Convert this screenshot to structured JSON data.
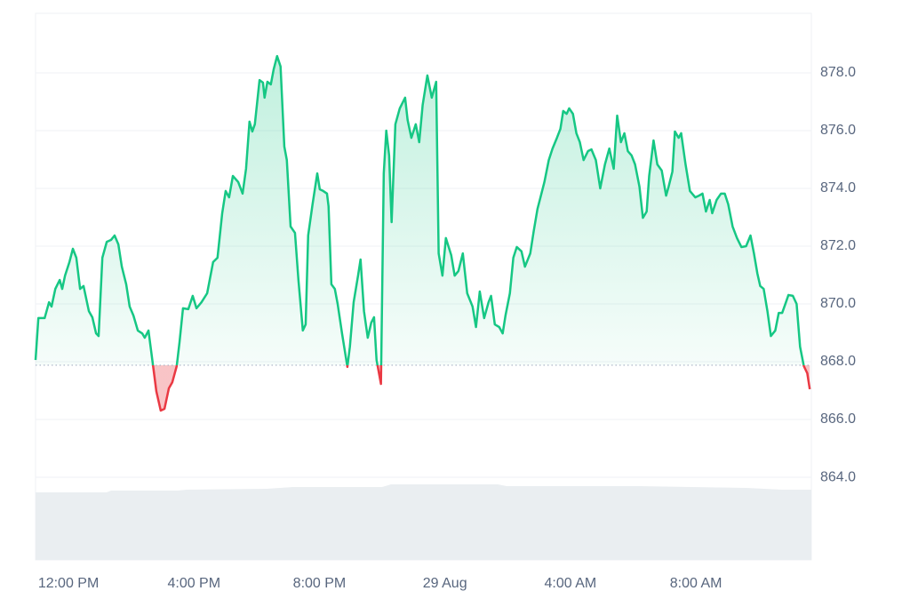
{
  "chart_data": {
    "type": "area",
    "xlim": [
      -1.05,
      23.68
    ],
    "xticks": [
      {
        "value": 0,
        "label": "12:00 PM"
      },
      {
        "value": 4,
        "label": "4:00 PM"
      },
      {
        "value": 8,
        "label": "8:00 PM"
      },
      {
        "value": 12,
        "label": "29 Aug"
      },
      {
        "value": 16,
        "label": "4:00 AM"
      },
      {
        "value": 20,
        "label": "8:00 AM"
      }
    ],
    "ylim": [
      861.14,
      880.06
    ],
    "yticks": [
      {
        "value": 864,
        "label": "864.0"
      },
      {
        "value": 866,
        "label": "866.0"
      },
      {
        "value": 868,
        "label": "868.0"
      },
      {
        "value": 870,
        "label": "870.0"
      },
      {
        "value": 872,
        "label": "872.0"
      },
      {
        "value": 874,
        "label": "874.0"
      },
      {
        "value": 876,
        "label": "876.0"
      },
      {
        "value": 878,
        "label": "878.0"
      }
    ],
    "grid": true,
    "baseline": 867.88,
    "up_color": "#16c784",
    "down_color": "#ea3943",
    "x": [
      -1.05,
      -0.96,
      -0.76,
      -0.62,
      -0.54,
      -0.42,
      -0.28,
      -0.2,
      -0.11,
      0.03,
      0.14,
      0.25,
      0.37,
      0.48,
      0.65,
      0.76,
      0.88,
      0.96,
      1.08,
      1.22,
      1.36,
      1.47,
      1.59,
      1.7,
      1.84,
      1.95,
      2.07,
      2.21,
      2.35,
      2.43,
      2.55,
      2.69,
      2.8,
      2.94,
      3.06,
      3.2,
      3.31,
      3.45,
      3.54,
      3.65,
      3.82,
      3.96,
      4.08,
      4.24,
      4.42,
      4.61,
      4.75,
      4.9,
      5.01,
      5.12,
      5.24,
      5.41,
      5.55,
      5.66,
      5.77,
      5.86,
      5.94,
      6.09,
      6.2,
      6.25,
      6.34,
      6.45,
      6.54,
      6.65,
      6.76,
      6.88,
      6.96,
      7.08,
      7.22,
      7.33,
      7.47,
      7.56,
      7.64,
      7.78,
      7.93,
      8.01,
      8.12,
      8.24,
      8.29,
      8.38,
      8.49,
      8.58,
      8.72,
      8.89,
      8.97,
      9.09,
      9.23,
      9.31,
      9.42,
      9.54,
      9.65,
      9.74,
      9.82,
      9.96,
      10.05,
      10.13,
      10.22,
      10.3,
      10.42,
      10.56,
      10.73,
      10.81,
      10.93,
      11.07,
      11.18,
      11.29,
      11.44,
      11.58,
      11.72,
      11.8,
      11.92,
      12.03,
      12.2,
      12.31,
      12.43,
      12.57,
      12.71,
      12.88,
      12.99,
      13.11,
      13.25,
      13.39,
      13.47,
      13.59,
      13.73,
      13.84,
      13.93,
      14.07,
      14.18,
      14.29,
      14.44,
      14.55,
      14.72,
      14.83,
      14.95,
      15.06,
      15.17,
      15.31,
      15.43,
      15.57,
      15.68,
      15.77,
      15.88,
      15.96,
      16.08,
      16.19,
      16.3,
      16.42,
      16.56,
      16.67,
      16.81,
      16.95,
      17.1,
      17.24,
      17.38,
      17.49,
      17.61,
      17.72,
      17.83,
      17.95,
      18.06,
      18.2,
      18.31,
      18.43,
      18.51,
      18.65,
      18.77,
      18.91,
      19.05,
      19.13,
      19.25,
      19.33,
      19.45,
      19.53,
      19.67,
      19.81,
      19.98,
      20.1,
      20.21,
      20.32,
      20.44,
      20.52,
      20.66,
      20.8,
      20.92,
      21.03,
      21.17,
      21.31,
      21.45,
      21.6,
      21.74,
      21.85,
      21.96,
      22.05,
      22.16,
      22.28,
      22.39,
      22.53,
      22.64,
      22.75,
      22.87,
      22.95,
      23.09,
      23.21,
      23.32,
      23.44,
      23.55,
      23.63
    ],
    "values": [
      868.06,
      869.51,
      869.51,
      870.06,
      869.91,
      870.52,
      870.83,
      870.52,
      870.98,
      871.45,
      871.91,
      871.6,
      870.52,
      870.62,
      869.75,
      869.54,
      868.98,
      868.89,
      871.6,
      872.15,
      872.22,
      872.37,
      872.06,
      871.29,
      870.68,
      869.91,
      869.6,
      869.08,
      868.98,
      868.83,
      869.08,
      867.91,
      866.98,
      866.31,
      866.37,
      867.08,
      867.29,
      867.85,
      868.68,
      869.85,
      869.82,
      870.28,
      869.85,
      870.06,
      870.37,
      871.45,
      871.6,
      873.14,
      873.91,
      873.69,
      874.43,
      874.22,
      873.82,
      874.68,
      876.31,
      875.97,
      876.22,
      877.75,
      877.66,
      877.14,
      877.69,
      877.6,
      878.12,
      878.58,
      878.22,
      875.45,
      874.98,
      872.68,
      872.46,
      870.83,
      869.08,
      869.29,
      872.37,
      873.45,
      874.52,
      873.97,
      873.91,
      873.82,
      873.38,
      870.68,
      870.52,
      870.0,
      868.98,
      867.82,
      868.52,
      870.06,
      870.98,
      871.54,
      869.75,
      868.83,
      869.35,
      869.54,
      868.06,
      867.23,
      874.52,
      876.0,
      875.14,
      872.83,
      876.22,
      876.77,
      877.14,
      876.37,
      875.75,
      876.22,
      875.6,
      876.89,
      877.91,
      877.14,
      877.69,
      871.75,
      870.98,
      872.28,
      871.69,
      870.98,
      871.14,
      871.75,
      870.37,
      869.91,
      869.2,
      870.43,
      869.51,
      870.06,
      870.28,
      869.29,
      869.2,
      868.98,
      869.6,
      870.37,
      871.6,
      871.97,
      871.82,
      871.29,
      871.75,
      872.52,
      873.29,
      873.75,
      874.22,
      874.98,
      875.38,
      875.75,
      876.06,
      876.68,
      876.58,
      876.77,
      876.58,
      875.91,
      875.6,
      874.98,
      875.29,
      875.35,
      874.98,
      874.0,
      874.83,
      875.38,
      874.68,
      876.52,
      875.6,
      875.91,
      875.29,
      875.14,
      874.83,
      874.06,
      872.98,
      873.2,
      874.43,
      875.66,
      874.83,
      874.62,
      873.75,
      874.06,
      874.58,
      875.97,
      875.75,
      875.91,
      874.83,
      873.91,
      873.69,
      873.75,
      873.82,
      873.2,
      873.6,
      873.14,
      873.6,
      873.82,
      873.82,
      873.45,
      872.68,
      872.28,
      871.97,
      872.0,
      872.37,
      871.75,
      871.05,
      870.62,
      870.52,
      869.75,
      868.89,
      869.08,
      869.69,
      869.69,
      870.06,
      870.31,
      870.28,
      870.0,
      868.52,
      867.85,
      867.6,
      867.05
    ]
  }
}
